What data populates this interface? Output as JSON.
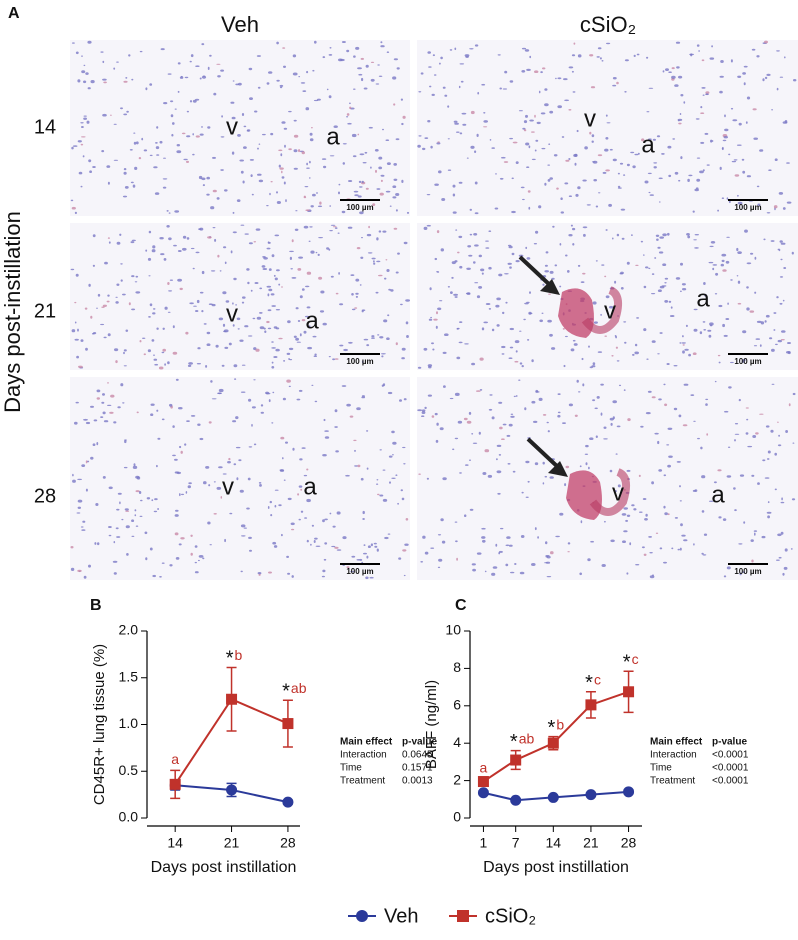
{
  "panel_a": {
    "label": "A",
    "columns": [
      "Veh",
      "cSiO₂"
    ],
    "rows": [
      "14",
      "21",
      "28"
    ],
    "row_axis_label": "Days post-instillation",
    "scale_bar": "100 µm",
    "markers": [
      "v",
      "a"
    ]
  },
  "chart_data": [
    {
      "type": "line",
      "label": "B",
      "ylabel": "CD45R+ lung tissue (%)",
      "xlabel": "Days post instillation",
      "x": [
        14,
        21,
        28
      ],
      "xlim": [
        10.5,
        29.5
      ],
      "xticks": [
        14,
        21,
        28
      ],
      "ylim": [
        0,
        2
      ],
      "yticks": [
        {
          "value": 0,
          "label": "0.0"
        },
        {
          "value": 0.5,
          "label": "0.5"
        },
        {
          "value": 1,
          "label": "1.0"
        },
        {
          "value": 1.5,
          "label": "1.5"
        },
        {
          "value": 2,
          "label": "2.0"
        }
      ],
      "series": [
        {
          "name": "Veh",
          "color": "#2b3a9a",
          "marker": "circle",
          "values": [
            0.35,
            0.3,
            0.17
          ],
          "errors": [
            0.05,
            0.07,
            0.02
          ]
        },
        {
          "name": "cSiO₂",
          "color": "#c0322b",
          "marker": "square",
          "values": [
            0.36,
            1.27,
            1.01
          ],
          "errors": [
            0.15,
            0.34,
            0.25
          ],
          "stars": [
            null,
            "*",
            "*"
          ],
          "letters": [
            "a",
            "b",
            "ab"
          ]
        }
      ],
      "stats": {
        "header": [
          "Main effect",
          "p-value"
        ],
        "rows": [
          [
            "Interaction",
            "0.0645"
          ],
          [
            "Time",
            "0.1571"
          ],
          [
            "Treatment",
            "0.0013"
          ]
        ]
      }
    },
    {
      "type": "line",
      "label": "C",
      "ylabel": "BAFF (ng/ml)",
      "xlabel": "Days post instillation",
      "x": [
        1,
        7,
        14,
        21,
        28
      ],
      "xlim": [
        -1.5,
        30.5
      ],
      "xticks": [
        1,
        7,
        14,
        21,
        28
      ],
      "ylim": [
        0,
        10
      ],
      "yticks": [
        0,
        2,
        4,
        6,
        8,
        10
      ],
      "series": [
        {
          "name": "Veh",
          "color": "#2b3a9a",
          "marker": "circle",
          "values": [
            1.35,
            0.95,
            1.1,
            1.25,
            1.4
          ],
          "errors": [
            0.1,
            0.08,
            0.08,
            0.08,
            0.1
          ]
        },
        {
          "name": "cSiO₂",
          "color": "#c0322b",
          "marker": "square",
          "values": [
            1.95,
            3.1,
            4.0,
            6.05,
            6.75
          ],
          "errors": [
            0.15,
            0.5,
            0.35,
            0.7,
            1.1
          ],
          "stars": [
            null,
            "*",
            "*",
            "*",
            "*"
          ],
          "letters": [
            "a",
            "ab",
            "b",
            "c",
            "c"
          ]
        }
      ],
      "stats": {
        "header": [
          "Main effect",
          "p-value"
        ],
        "rows": [
          [
            "Interaction",
            "<0.0001"
          ],
          [
            "Time",
            "<0.0001"
          ],
          [
            "Treatment",
            "<0.0001"
          ]
        ]
      }
    }
  ]
}
